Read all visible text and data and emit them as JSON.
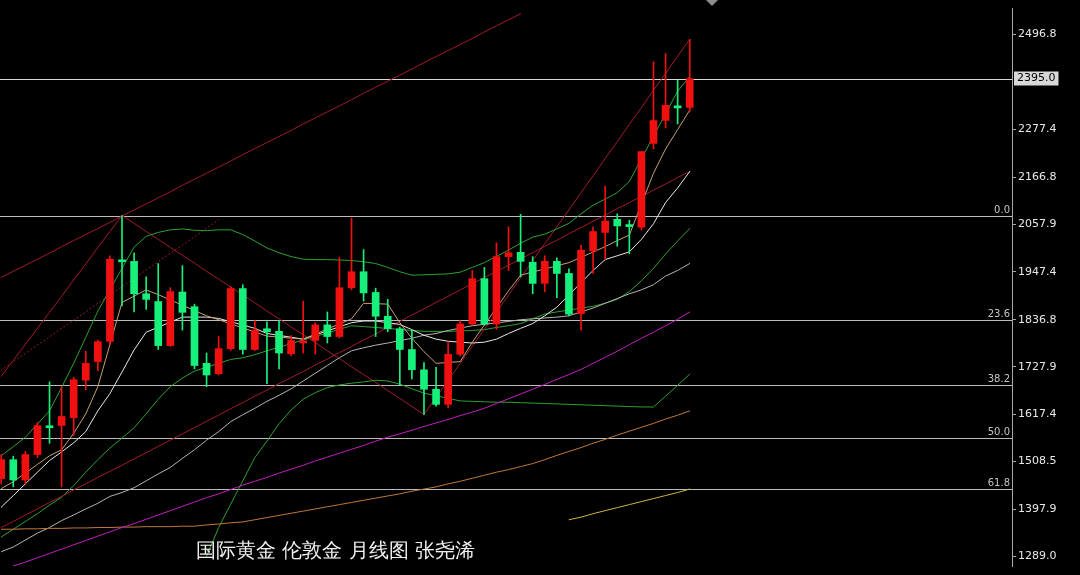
{
  "chart_data": {
    "type": "candlestick",
    "title": "国际黄金 伦敦金 月线图 张尧浠",
    "categories": [
      null,
      null,
      null,
      null,
      null,
      null,
      null,
      null,
      null,
      null,
      null,
      null,
      null,
      null,
      null,
      null,
      null,
      null,
      null,
      null,
      null,
      null,
      null,
      null,
      null,
      null,
      null,
      null,
      null,
      null,
      null,
      null,
      null,
      null,
      null,
      null,
      null,
      null,
      null,
      null,
      null,
      null,
      null,
      null,
      null,
      null,
      null,
      null,
      null,
      null,
      null,
      null,
      null,
      null,
      null,
      null,
      null,
      null
    ],
    "ohlc": [
      [
        1469,
        1525,
        1457,
        1513
      ],
      [
        1513,
        1521,
        1450,
        1466
      ],
      [
        1466,
        1532,
        1457,
        1525
      ],
      [
        1525,
        1599,
        1518,
        1592
      ],
      [
        1590,
        1693,
        1551,
        1587
      ],
      [
        1592,
        1682,
        1450,
        1613
      ],
      [
        1610,
        1704,
        1569,
        1698
      ],
      [
        1697,
        1764,
        1675,
        1736
      ],
      [
        1740,
        1790,
        1719,
        1786
      ],
      [
        1787,
        1985,
        1780,
        1977
      ],
      [
        1975,
        2078,
        1869,
        1971
      ],
      [
        1972,
        1992,
        1855,
        1897
      ],
      [
        1897,
        1936,
        1861,
        1884
      ],
      [
        1879,
        1967,
        1768,
        1777
      ],
      [
        1777,
        1911,
        1775,
        1902
      ],
      [
        1901,
        1962,
        1813,
        1854
      ],
      [
        1867,
        1873,
        1723,
        1731
      ],
      [
        1736,
        1760,
        1682,
        1709
      ],
      [
        1712,
        1798,
        1709,
        1770
      ],
      [
        1770,
        1914,
        1766,
        1909
      ],
      [
        1909,
        1918,
        1757,
        1768
      ],
      [
        1768,
        1835,
        1766,
        1813
      ],
      [
        1816,
        1832,
        1689,
        1809
      ],
      [
        1810,
        1835,
        1723,
        1760
      ],
      [
        1758,
        1800,
        1753,
        1789
      ],
      [
        1783,
        1880,
        1760,
        1788
      ],
      [
        1789,
        1830,
        1757,
        1825
      ],
      [
        1825,
        1855,
        1783,
        1798
      ],
      [
        1798,
        1981,
        1795,
        1911
      ],
      [
        1911,
        2072,
        1906,
        1948
      ],
      [
        1948,
        1999,
        1880,
        1899
      ],
      [
        1900,
        1910,
        1798,
        1845
      ],
      [
        1845,
        1884,
        1809,
        1816
      ],
      [
        1816,
        1820,
        1686,
        1768
      ],
      [
        1768,
        1813,
        1700,
        1721
      ],
      [
        1721,
        1738,
        1618,
        1676
      ],
      [
        1676,
        1727,
        1637,
        1641
      ],
      [
        1641,
        1786,
        1633,
        1757
      ],
      [
        1757,
        1835,
        1753,
        1827
      ],
      [
        1827,
        1951,
        1825,
        1932
      ],
      [
        1932,
        1958,
        1824,
        1827
      ],
      [
        1827,
        2015,
        1815,
        1983
      ],
      [
        1983,
        2052,
        1951,
        1992
      ],
      [
        1993,
        2081,
        1936,
        1972
      ],
      [
        1970,
        1983,
        1897,
        1921
      ],
      [
        1921,
        1985,
        1902,
        1972
      ],
      [
        1972,
        1980,
        1888,
        1944
      ],
      [
        1944,
        1955,
        1846,
        1850
      ],
      [
        1851,
        2009,
        1813,
        1998
      ],
      [
        1996,
        2052,
        1944,
        2041
      ],
      [
        2039,
        2146,
        1977,
        2065
      ],
      [
        2069,
        2082,
        2007,
        2054
      ],
      [
        2057,
        2067,
        1990,
        2052
      ],
      [
        2051,
        2226,
        2044,
        2226
      ],
      [
        2245,
        2434,
        2232,
        2298
      ],
      [
        2298,
        2453,
        2281,
        2333
      ],
      [
        2332,
        2391,
        2290,
        2327
      ],
      [
        2328,
        2486,
        2318,
        2395
      ]
    ],
    "colors": [
      "#f01010",
      "#18f07c",
      "#f01010",
      "#f01010",
      "#18f07c",
      "#f01010",
      "#f01010",
      "#f01010",
      "#f01010",
      "#f01010",
      "#18f07c",
      "#18f07c",
      "#18f07c",
      "#18f07c",
      "#f01010",
      "#18f07c",
      "#18f07c",
      "#18f07c",
      "#f01010",
      "#f01010",
      "#18f07c",
      "#f01010",
      "#18f07c",
      "#18f07c",
      "#f01010",
      "#f01010",
      "#f01010",
      "#18f07c",
      "#f01010",
      "#f01010",
      "#18f07c",
      "#18f07c",
      "#18f07c",
      "#18f07c",
      "#18f07c",
      "#18f07c",
      "#18f07c",
      "#f01010",
      "#f01010",
      "#f01010",
      "#18f07c",
      "#f01010",
      "#f01010",
      "#18f07c",
      "#18f07c",
      "#f01010",
      "#18f07c",
      "#18f07c",
      "#f01010",
      "#f01010",
      "#f01010",
      "#18f07c",
      "#18f07c",
      "#f01010",
      "#f01010",
      "#f01010",
      "#18f07c",
      "#f01010"
    ],
    "series": [
      {
        "type": "line",
        "color": "#c020c0",
        "values": [
          null,
          1267,
          1276,
          1286,
          1296,
          1306,
          1316,
          1326,
          1336,
          1346,
          1356,
          1365,
          1375,
          1385,
          1395,
          1405,
          1415,
          1425,
          1434,
          1444,
          1454,
          1463,
          1472,
          1482,
          1491,
          1500,
          1510,
          1519,
          1528,
          1537,
          1546,
          1556,
          1565,
          1573,
          1581,
          1590,
          1598,
          1606,
          1615,
          1623,
          1632,
          1643,
          1654,
          1665,
          1676,
          1687,
          1699,
          1710,
          1722,
          1736,
          1750,
          1764,
          1779,
          1794,
          1808,
          1823,
          1838,
          1855
        ]
      },
      {
        "type": "line",
        "color": "#c07838",
        "values": [
          1352,
          1352,
          1353,
          1353,
          1354,
          1354,
          1355,
          1355,
          1356,
          1356,
          1357,
          1357,
          1358,
          1358,
          1358,
          1359,
          1359,
          1362,
          1364,
          1367,
          1369,
          1374,
          1379,
          1384,
          1389,
          1394,
          1399,
          1404,
          1409,
          1414,
          1419,
          1424,
          1429,
          1434,
          1440,
          1445,
          1450,
          1457,
          1463,
          1470,
          1477,
          1484,
          1490,
          1497,
          1504,
          1513,
          1523,
          1532,
          1541,
          1551,
          1560,
          1570,
          1579,
          1588,
          1597,
          1607,
          1616,
          1626
        ]
      },
      {
        "type": "line",
        "color": "#c8b848",
        "values": [
          null,
          null,
          null,
          null,
          null,
          null,
          null,
          null,
          null,
          null,
          null,
          null,
          null,
          null,
          null,
          null,
          null,
          null,
          null,
          null,
          null,
          null,
          null,
          null,
          null,
          null,
          null,
          null,
          null,
          null,
          null,
          null,
          null,
          null,
          null,
          null,
          null,
          null,
          null,
          null,
          null,
          null,
          null,
          null,
          null,
          null,
          null,
          1374,
          1380,
          1388,
          1395,
          1402,
          1409,
          1416,
          1423,
          1430,
          1437,
          1445
        ]
      },
      {
        "type": "line",
        "color": "#2ea02e",
        "values": [
          null,
          null,
          null,
          null,
          null,
          null,
          null,
          null,
          null,
          null,
          null,
          null,
          null,
          null,
          null,
          null,
          null,
          1289,
          1356,
          1410,
          1464,
          1518,
          1556,
          1596,
          1628,
          1653,
          1668,
          1680,
          1686,
          1690,
          1693,
          1697,
          1695,
          1688,
          1677,
          1667,
          null,
          null,
          1649,
          1648,
          1647,
          1646,
          1646,
          1645,
          1644,
          1643,
          1642,
          1641,
          1640,
          1639,
          1638,
          1637,
          1636,
          1635,
          1635,
          1660,
          1685,
          1711
        ]
      },
      {
        "type": "line",
        "color": "#2ea02e",
        "values": [
          1522,
          1543,
          1565,
          null,
          1626,
          1680,
          1736,
          1796,
          1857,
          null,
          null,
          2005,
          2030,
          2039,
          2045,
          2047,
          2044,
          2043,
          2045,
          2045,
          2034,
          2019,
          2003,
          1992,
          1983,
          1977,
          1976,
          1976,
          1975,
          1974,
          1971,
          1967,
          1958,
          1948,
          1940,
          1941,
          1942,
          1943,
          1947,
          1958,
          1969,
          null,
          1998,
          2014,
          2028,
          2035,
          2047,
          2060,
          2082,
          2102,
          2116,
          2131,
          2157,
          null,
          null,
          null,
          2366,
          2400
        ]
      },
      {
        "type": "line",
        "color": "#c8a070",
        "values": [
          1446,
          1462,
          null,
          1502,
          1522,
          1536,
          1574,
          1619,
          1682,
          null,
          1877,
          null,
          1906,
          1895,
          null,
          null,
          null,
          1846,
          1837,
          null,
          null,
          null,
          1799,
          null,
          null,
          1792,
          null,
          null,
          null,
          1839,
          1875,
          null,
          1873,
          1830,
          1794,
          1763,
          1736,
          null,
          1740,
          1785,
          null,
          null,
          1904,
          1940,
          null,
          null,
          null,
          1969,
          null,
          null,
          2006,
          2020,
          2033,
          null,
          2176,
          2232,
          2277,
          2322
        ]
      },
      {
        "type": "line",
        "color": "#e8e8e8",
        "values": [
          1403,
          1430,
          1457,
          1484,
          1511,
          1531,
          1552,
          1578,
          1626,
          1666,
          1716,
          1767,
          1808,
          null,
          null,
          1843,
          null,
          1843,
          1840,
          null,
          null,
          1817,
          1805,
          null,
          null,
          1792,
          null,
          null,
          null,
          1830,
          1834,
          1834,
          null,
          1826,
          1814,
          1801,
          1792,
          1787,
          null,
          1783,
          1785,
          1792,
          1805,
          1817,
          1828,
          1846,
          1866,
          null,
          null,
          1951,
          1976,
          1985,
          1994,
          2023,
          2059,
          2108,
          2142,
          2180
        ]
      },
      {
        "type": "line",
        "color": "#b4b4b4",
        "values": [
          1300,
          1311,
          1327,
          1343,
          1356,
          1372,
          1385,
          1399,
          1412,
          1428,
          1437,
          1448,
          1464,
          1480,
          1495,
          1516,
          1536,
          1558,
          1578,
          1601,
          1617,
          1632,
          1648,
          1662,
          1677,
          1695,
          1713,
          1731,
          1749,
          1765,
          1772,
          1778,
          1783,
          null,
          1794,
          1801,
          1805,
          1812,
          null,
          1823,
          null,
          null,
          1833,
          1837,
          1839,
          1841,
          1843,
          1846,
          null,
          1864,
          1875,
          1886,
          1897,
          1906,
          1918,
          1938,
          1951,
          1967
        ]
      },
      {
        "type": "line",
        "color": "#a01c2c",
        "values": [
          1935,
          1949,
          1963,
          1977,
          1991,
          2006,
          2020,
          2034,
          2048,
          2062,
          2077,
          2091,
          2105,
          2119,
          2133,
          2148,
          2162,
          2176,
          2190,
          2204,
          2219,
          2233,
          2247,
          2261,
          2275,
          2290,
          2304,
          2318,
          2332,
          2346,
          2361,
          2375,
          2389,
          2403,
          2417,
          2432,
          2446,
          2460,
          2474,
          2488,
          2503,
          2517,
          2531,
          2545,
          null,
          null,
          null,
          null,
          null,
          null,
          null,
          null,
          null,
          null,
          null,
          null,
          null,
          null
        ]
      },
      {
        "type": "line",
        "color": "#a01c2c",
        "values": [
          1356,
          1370,
          1385,
          1399,
          1414,
          1428,
          1443,
          1457,
          1472,
          1486,
          1500,
          1515,
          1529,
          1544,
          1558,
          1573,
          1587,
          1602,
          1616,
          1631,
          1645,
          1660,
          1674,
          1689,
          1703,
          1717,
          1732,
          1746,
          1761,
          1775,
          1790,
          1804,
          1819,
          1833,
          1848,
          1862,
          1877,
          1891,
          1906,
          null,
          null,
          null,
          1963,
          null,
          1992,
          2007,
          2021,
          2036,
          2050,
          2065,
          2079,
          2094,
          2108,
          null,
          2137,
          2151,
          2166,
          2180
        ]
      },
      {
        "type": "line",
        "color": "#a01c2c",
        "values": [
          null,
          null,
          null,
          null,
          null,
          null,
          null,
          null,
          null,
          null,
          null,
          null,
          null,
          null,
          null,
          null,
          null,
          null,
          null,
          null,
          null,
          null,
          null,
          null,
          null,
          null,
          null,
          null,
          null,
          null,
          null,
          null,
          null,
          null,
          null,
          1618,
          null,
          null,
          1736,
          1776,
          1815,
          null,
          1894,
          1934,
          null,
          2013,
          2052,
          2091,
          2131,
          2170,
          2210,
          2249,
          2289,
          2328,
          2368,
          2407,
          2447,
          2486
        ]
      },
      {
        "type": "line",
        "color": "#a01c2c",
        "values": [
          null,
          null,
          null,
          null,
          null,
          null,
          null,
          null,
          null,
          null,
          2078,
          2060,
          2041,
          2023,
          2004,
          1986,
          1968,
          1949,
          1931,
          null,
          null,
          1876,
          1857,
          1839,
          1820,
          1802,
          1784,
          1765,
          1747,
          1728,
          1710,
          1692,
          1673,
          1655,
          1636,
          1618,
          null,
          null,
          null,
          null,
          null,
          null,
          null,
          null,
          null,
          null,
          null,
          null,
          null,
          null,
          null,
          null,
          null,
          null,
          null,
          null,
          null,
          null
        ]
      },
      {
        "type": "line",
        "color": "#a01c2c",
        "values": [
          1706,
          1743,
          1780,
          1817,
          1854,
          1891,
          1929,
          1966,
          2004,
          2041,
          2078,
          null,
          null,
          null,
          null,
          null,
          null,
          null,
          null,
          null,
          null,
          null,
          null,
          null,
          null,
          null,
          null,
          null,
          null,
          null,
          null,
          null,
          null,
          null,
          null,
          null,
          null,
          null,
          null,
          null,
          null,
          null,
          null,
          null,
          null,
          null,
          null,
          null,
          null,
          null,
          null,
          null,
          null,
          null,
          null,
          null,
          null,
          null
        ]
      },
      {
        "type": "line",
        "color": "#a01c2c",
        "line_style": "dotted",
        "values": [
          1720,
          1740,
          1759,
          1778,
          1797,
          1817,
          1836,
          1855,
          1875,
          null,
          1913,
          null,
          1952,
          1971,
          1991,
          2010,
          2029,
          2049,
          2068,
          null,
          null,
          null,
          null,
          null,
          null,
          null,
          null,
          null,
          null,
          null,
          null,
          null,
          null,
          null,
          null,
          null,
          null,
          null,
          null,
          null,
          null,
          null,
          null,
          null,
          null,
          null,
          null,
          null,
          null,
          null,
          null,
          null,
          null,
          null,
          null,
          null,
          null,
          null
        ]
      },
      {
        "type": "line",
        "color": "#2ea02e",
        "values": [
          1334,
          1352,
          1370,
          1388,
          1408,
          1426,
          1453,
          1484,
          1513,
          1540,
          1563,
          1587,
          1619,
          1653,
          1682,
          1702,
          1718,
          null,
          null,
          1745,
          1749,
          1756,
          1765,
          null,
          null,
          null,
          null,
          null,
          null,
          1823,
          1821,
          1819,
          null,
          null,
          1812,
          1810,
          1810,
          1810,
          null,
          1812,
          1814,
          1819,
          1823,
          1828,
          1839,
          1850,
          1855,
          null,
          null,
          1868,
          1875,
          1884,
          1902,
          1927,
          1956,
          1989,
          2019,
          2048
        ]
      }
    ],
    "ylim": [
      1266,
      2557
    ],
    "yticks": [
      {
        "value": 1289,
        "label": "1289.0"
      },
      1397.9,
      1508.5,
      1617.4,
      1727.9,
      1836.8,
      1947.4,
      2057.9,
      2166.8,
      2277.4,
      2496.8
    ],
    "ref_lines": [
      {
        "axis": "y",
        "value": 2078,
        "color": "#bcbcbc"
      },
      {
        "axis": "y",
        "value": 1837,
        "color": "#bcbcbc"
      },
      {
        "axis": "y",
        "value": 1686,
        "color": "#bcbcbc"
      },
      {
        "axis": "y",
        "value": 1564,
        "color": "#bcbcbc"
      },
      {
        "axis": "y",
        "value": 1445,
        "color": "#bcbcbc"
      },
      {
        "axis": "y",
        "value": 2395,
        "label": "2395.0",
        "color": "#d8d8d8"
      }
    ],
    "annotations": [
      {
        "text": "0.0",
        "y": 2078
      },
      {
        "text": "23.6",
        "y": 1837
      },
      {
        "text": "38.2",
        "y": 1686
      },
      {
        "text": "50.0",
        "y": 1564
      },
      {
        "text": "61.8",
        "y": 1445
      }
    ]
  }
}
